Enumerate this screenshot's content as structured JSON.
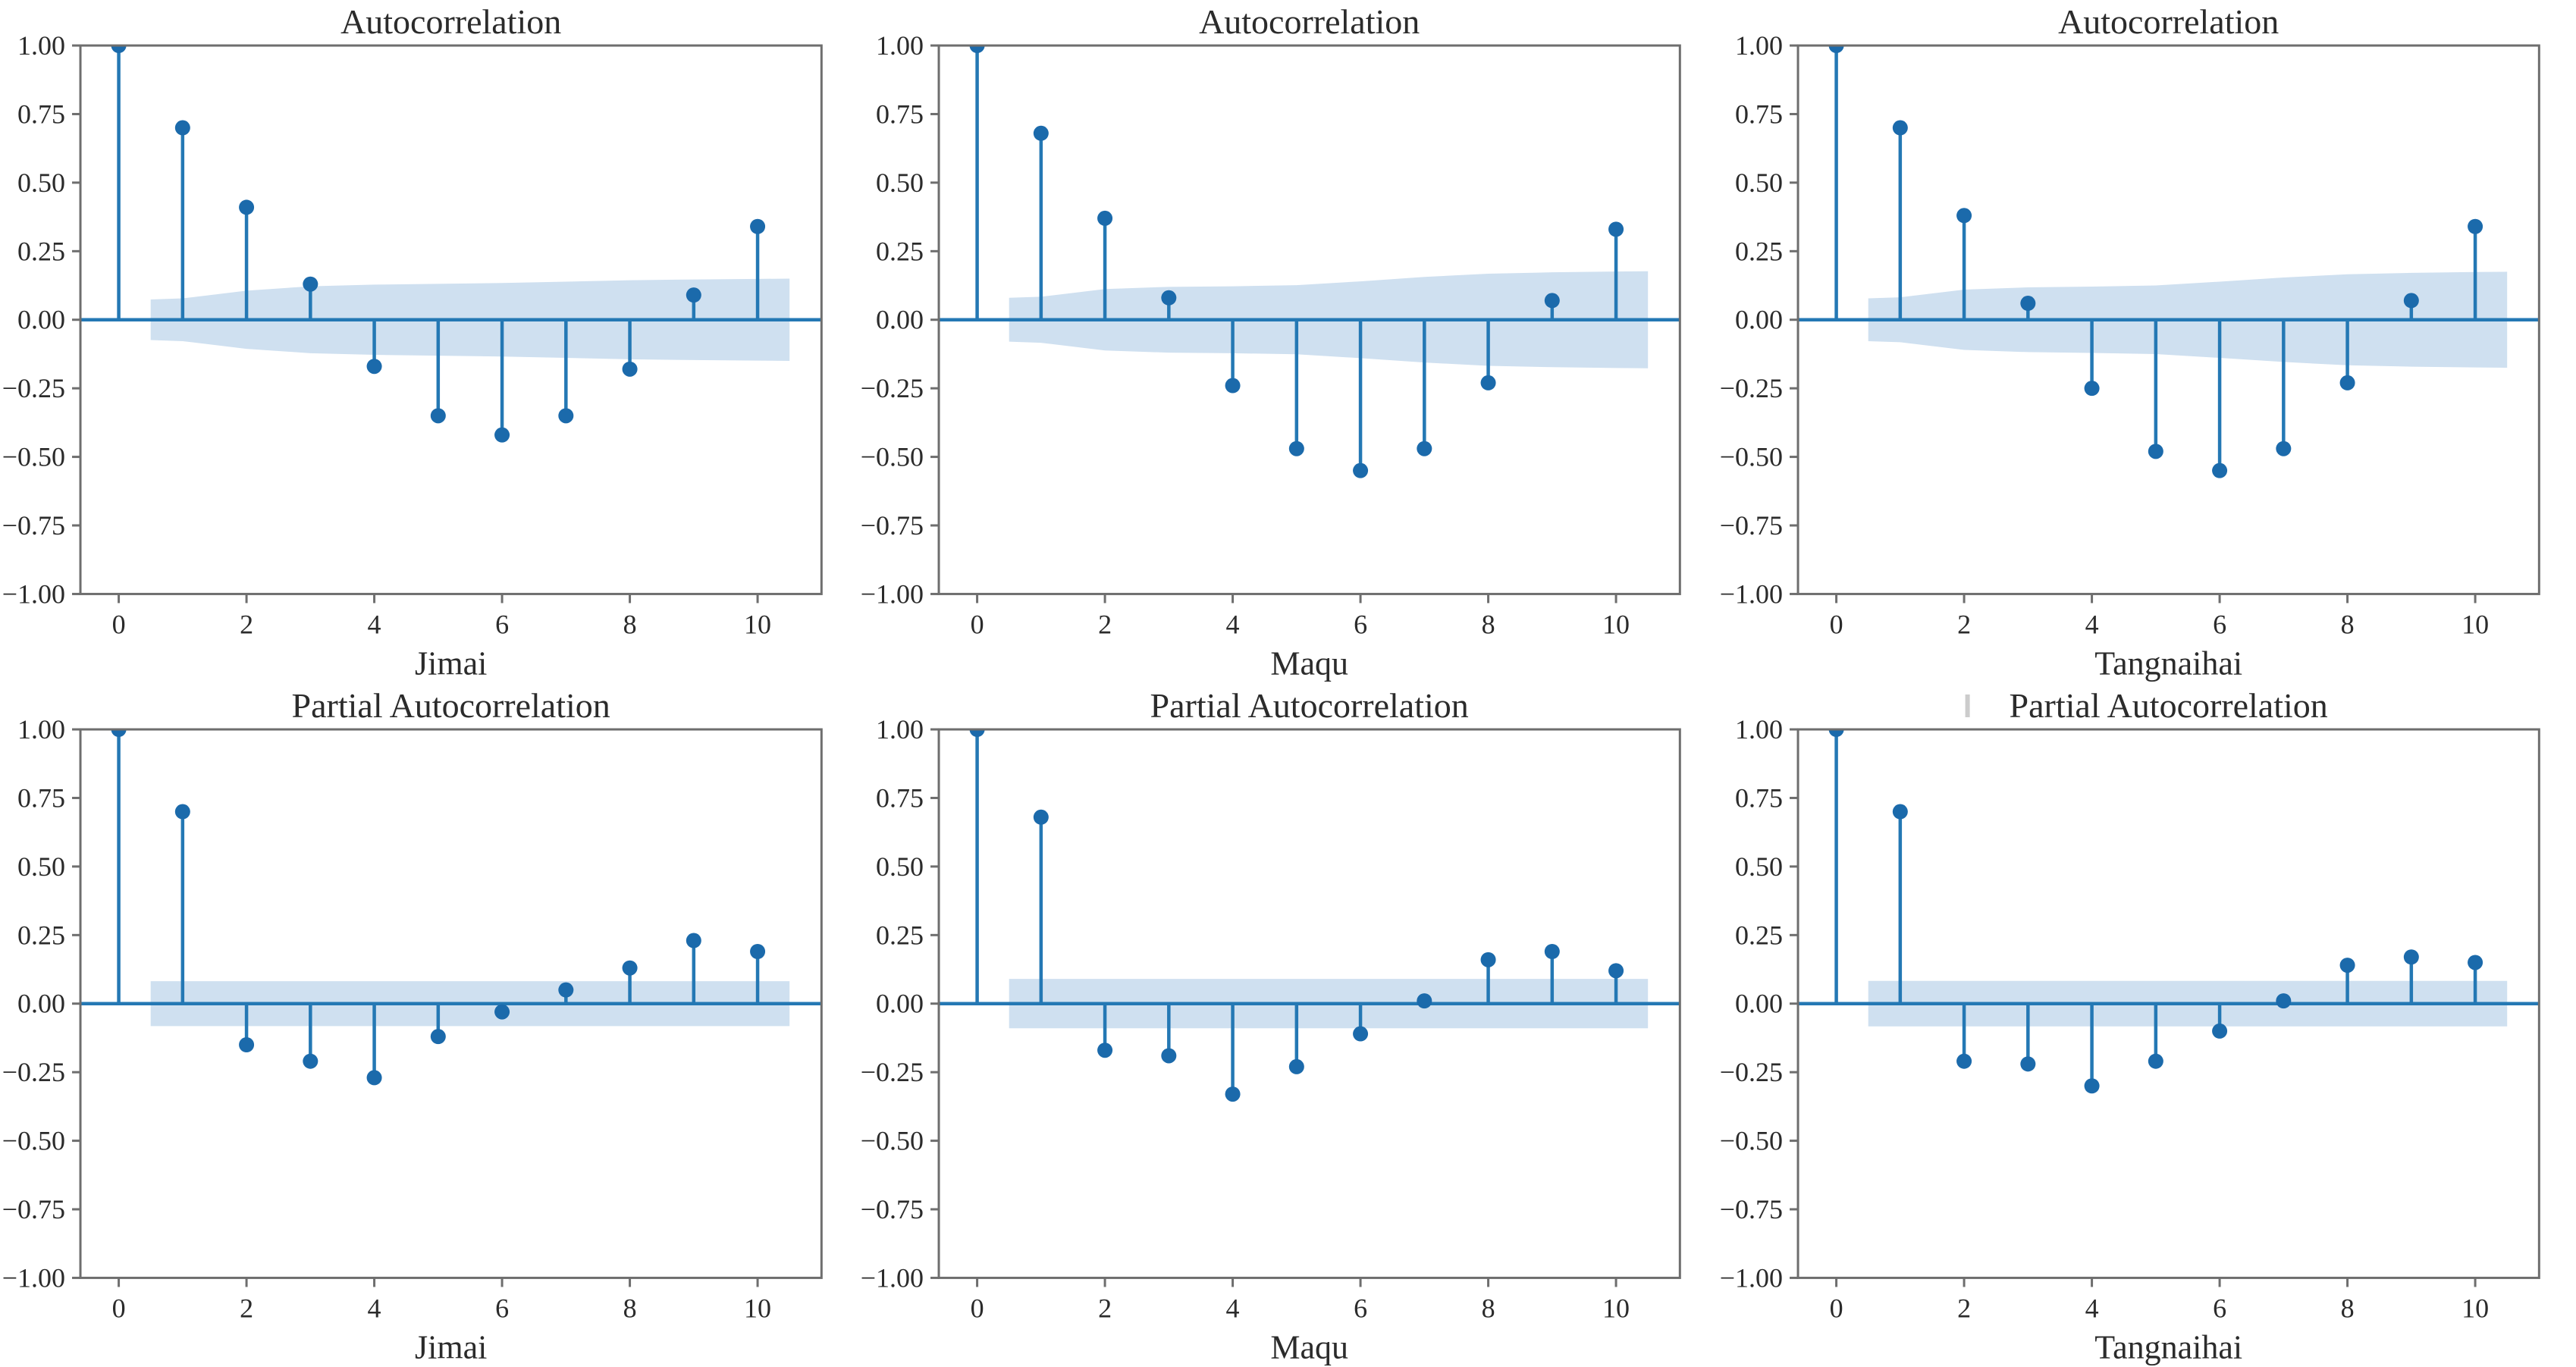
{
  "figure": {
    "background": "#ffffff",
    "rows": 2,
    "cols": 3
  },
  "colors": {
    "stem": "#2478b4",
    "marker": "#1b6aab",
    "band": "#cfe0f0",
    "zero_line": "#2478b4",
    "spine": "#6e6e6e",
    "tick": "#6e6e6e",
    "text": "#2b2b2b",
    "artifact": "#cccccc"
  },
  "chart_data": [
    {
      "type": "stem",
      "title": "Autocorrelation",
      "xlabel": "Jimai",
      "legend": "none",
      "grid": "off",
      "x": [
        0,
        1,
        2,
        3,
        4,
        5,
        6,
        7,
        8,
        9,
        10
      ],
      "values": [
        1.0,
        0.7,
        0.41,
        0.13,
        -0.17,
        -0.35,
        -0.42,
        -0.35,
        -0.18,
        0.09,
        0.34
      ],
      "conf_band": {
        "x": [
          0.5,
          1,
          2,
          3,
          4,
          5,
          6,
          7,
          8,
          9,
          10,
          10.5
        ],
        "half_width": [
          0.074,
          0.078,
          0.106,
          0.122,
          0.128,
          0.131,
          0.134,
          0.139,
          0.144,
          0.147,
          0.149,
          0.15
        ]
      },
      "xlim": [
        -0.6,
        11.0
      ],
      "ylim": [
        -1.0,
        1.0
      ],
      "yticks": {
        "values": [
          1.0,
          0.75,
          0.5,
          0.25,
          0.0,
          -0.25,
          -0.5,
          -0.75,
          -1.0
        ],
        "labels": [
          "1.00",
          "0.75",
          "0.50",
          "0.25",
          "0.00",
          "−0.25",
          "−0.50",
          "−0.75",
          "−1.00"
        ]
      },
      "xticks": {
        "values": [
          0,
          2,
          4,
          6,
          8,
          10
        ],
        "labels": [
          "0",
          "2",
          "4",
          "6",
          "8",
          "10"
        ]
      }
    },
    {
      "type": "stem",
      "title": "Autocorrelation",
      "xlabel": "Maqu",
      "legend": "none",
      "grid": "off",
      "x": [
        0,
        1,
        2,
        3,
        4,
        5,
        6,
        7,
        8,
        9,
        10
      ],
      "values": [
        1.0,
        0.68,
        0.37,
        0.08,
        -0.24,
        -0.47,
        -0.55,
        -0.47,
        -0.23,
        0.07,
        0.33
      ],
      "conf_band": {
        "x": [
          0.5,
          1,
          2,
          3,
          4,
          5,
          6,
          7,
          8,
          9,
          10,
          10.5
        ],
        "half_width": [
          0.08,
          0.084,
          0.112,
          0.12,
          0.122,
          0.126,
          0.14,
          0.156,
          0.168,
          0.173,
          0.176,
          0.177
        ]
      },
      "xlim": [
        -0.6,
        11.0
      ],
      "ylim": [
        -1.0,
        1.0
      ],
      "yticks": {
        "values": [
          1.0,
          0.75,
          0.5,
          0.25,
          0.0,
          -0.25,
          -0.5,
          -0.75,
          -1.0
        ],
        "labels": [
          "1.00",
          "0.75",
          "0.50",
          "0.25",
          "0.00",
          "−0.25",
          "−0.50",
          "−0.75",
          "−1.00"
        ]
      },
      "xticks": {
        "values": [
          0,
          2,
          4,
          6,
          8,
          10
        ],
        "labels": [
          "0",
          "2",
          "4",
          "6",
          "8",
          "10"
        ]
      }
    },
    {
      "type": "stem",
      "title": "Autocorrelation",
      "xlabel": "Tangnaihai",
      "legend": "none",
      "grid": "off",
      "x": [
        0,
        1,
        2,
        3,
        4,
        5,
        6,
        7,
        8,
        9,
        10
      ],
      "values": [
        1.0,
        0.7,
        0.38,
        0.06,
        -0.25,
        -0.48,
        -0.55,
        -0.47,
        -0.23,
        0.07,
        0.34
      ],
      "conf_band": {
        "x": [
          0.5,
          1,
          2,
          3,
          4,
          5,
          6,
          7,
          8,
          9,
          10,
          10.5
        ],
        "half_width": [
          0.078,
          0.082,
          0.11,
          0.118,
          0.121,
          0.125,
          0.139,
          0.154,
          0.166,
          0.171,
          0.174,
          0.175
        ]
      },
      "xlim": [
        -0.6,
        11.0
      ],
      "ylim": [
        -1.0,
        1.0
      ],
      "yticks": {
        "values": [
          1.0,
          0.75,
          0.5,
          0.25,
          0.0,
          -0.25,
          -0.5,
          -0.75,
          -1.0
        ],
        "labels": [
          "1.00",
          "0.75",
          "0.50",
          "0.25",
          "0.00",
          "−0.25",
          "−0.50",
          "−0.75",
          "−1.00"
        ]
      },
      "xticks": {
        "values": [
          0,
          2,
          4,
          6,
          8,
          10
        ],
        "labels": [
          "0",
          "2",
          "4",
          "6",
          "8",
          "10"
        ]
      }
    },
    {
      "type": "stem",
      "title": "Partial Autocorrelation",
      "xlabel": "Jimai",
      "legend": "none",
      "grid": "off",
      "x": [
        0,
        1,
        2,
        3,
        4,
        5,
        6,
        7,
        8,
        9,
        10
      ],
      "values": [
        1.0,
        0.7,
        -0.15,
        -0.21,
        -0.27,
        -0.12,
        -0.03,
        0.05,
        0.13,
        0.23,
        0.19
      ],
      "conf_band": {
        "x": [
          0.5,
          10.5
        ],
        "half_width": [
          0.082,
          0.082
        ]
      },
      "xlim": [
        -0.6,
        11.0
      ],
      "ylim": [
        -1.0,
        1.0
      ],
      "yticks": {
        "values": [
          1.0,
          0.75,
          0.5,
          0.25,
          0.0,
          -0.25,
          -0.5,
          -0.75,
          -1.0
        ],
        "labels": [
          "1.00",
          "0.75",
          "0.50",
          "0.25",
          "0.00",
          "−0.25",
          "−0.50",
          "−0.75",
          "−1.00"
        ]
      },
      "xticks": {
        "values": [
          0,
          2,
          4,
          6,
          8,
          10
        ],
        "labels": [
          "0",
          "2",
          "4",
          "6",
          "8",
          "10"
        ]
      }
    },
    {
      "type": "stem",
      "title": "Partial Autocorrelation",
      "xlabel": "Maqu",
      "legend": "none",
      "grid": "off",
      "x": [
        0,
        1,
        2,
        3,
        4,
        5,
        6,
        7,
        8,
        9,
        10
      ],
      "values": [
        1.0,
        0.68,
        -0.17,
        -0.19,
        -0.33,
        -0.23,
        -0.11,
        0.01,
        0.16,
        0.19,
        0.12
      ],
      "conf_band": {
        "x": [
          0.5,
          10.5
        ],
        "half_width": [
          0.09,
          0.09
        ]
      },
      "xlim": [
        -0.6,
        11.0
      ],
      "ylim": [
        -1.0,
        1.0
      ],
      "yticks": {
        "values": [
          1.0,
          0.75,
          0.5,
          0.25,
          0.0,
          -0.25,
          -0.5,
          -0.75,
          -1.0
        ],
        "labels": [
          "1.00",
          "0.75",
          "0.50",
          "0.25",
          "0.00",
          "−0.25",
          "−0.50",
          "−0.75",
          "−1.00"
        ]
      },
      "xticks": {
        "values": [
          0,
          2,
          4,
          6,
          8,
          10
        ],
        "labels": [
          "0",
          "2",
          "4",
          "6",
          "8",
          "10"
        ]
      }
    },
    {
      "type": "stem",
      "title": "Partial Autocorrelation",
      "title_artifact": "|",
      "xlabel": "Tangnaihai",
      "legend": "none",
      "grid": "off",
      "x": [
        0,
        1,
        2,
        3,
        4,
        5,
        6,
        7,
        8,
        9,
        10
      ],
      "values": [
        1.0,
        0.7,
        -0.21,
        -0.22,
        -0.3,
        -0.21,
        -0.1,
        0.01,
        0.14,
        0.17,
        0.15
      ],
      "conf_band": {
        "x": [
          0.5,
          10.5
        ],
        "half_width": [
          0.083,
          0.083
        ]
      },
      "xlim": [
        -0.6,
        11.0
      ],
      "ylim": [
        -1.0,
        1.0
      ],
      "yticks": {
        "values": [
          1.0,
          0.75,
          0.5,
          0.25,
          0.0,
          -0.25,
          -0.5,
          -0.75,
          -1.0
        ],
        "labels": [
          "1.00",
          "0.75",
          "0.50",
          "0.25",
          "0.00",
          "−0.25",
          "−0.50",
          "−0.75",
          "−1.00"
        ]
      },
      "xticks": {
        "values": [
          0,
          2,
          4,
          6,
          8,
          10
        ],
        "labels": [
          "0",
          "2",
          "4",
          "6",
          "8",
          "10"
        ]
      }
    }
  ]
}
